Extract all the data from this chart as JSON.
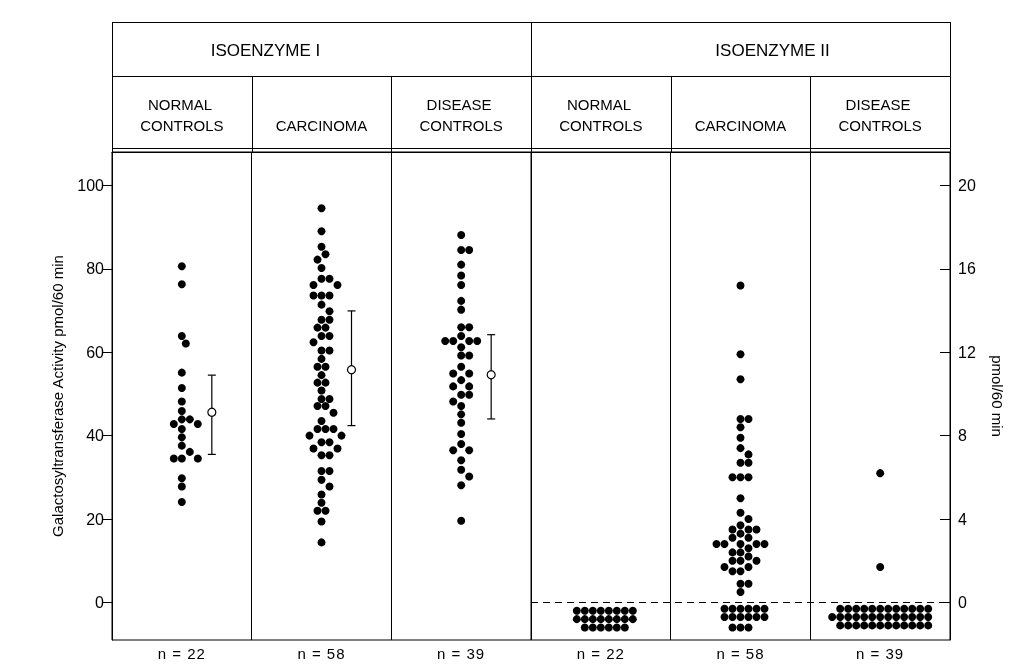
{
  "chart_data": [
    {
      "type": "scatter",
      "title": "ISOENZYME I",
      "categories": [
        "NORMAL CONTROLS",
        "CARCINOMA",
        "DISEASE CONTROLS"
      ],
      "ylabel": "Galactosyltransferase Activity pmol/60 min",
      "annotations": [
        "n = 22",
        "n = 58",
        "n = 39"
      ],
      "ylim": [
        -9,
        108
      ],
      "yticks": [
        0,
        20,
        40,
        60,
        80,
        100
      ],
      "grid": "x",
      "marker": "circle",
      "series": [
        {
          "axis": "y",
          "color": "#000000",
          "x": [
            "NORMAL CONTROLS",
            "NORMAL CONTROLS",
            "NORMAL CONTROLS",
            "NORMAL CONTROLS",
            "NORMAL CONTROLS",
            "NORMAL CONTROLS",
            "NORMAL CONTROLS",
            "NORMAL CONTROLS",
            "NORMAL CONTROLS",
            "NORMAL CONTROLS",
            "NORMAL CONTROLS",
            "NORMAL CONTROLS",
            "NORMAL CONTROLS",
            "NORMAL CONTROLS",
            "NORMAL CONTROLS",
            "NORMAL CONTROLS",
            "NORMAL CONTROLS",
            "NORMAL CONTROLS",
            "NORMAL CONTROLS",
            "NORMAL CONTROLS",
            "NORMAL CONTROLS",
            "NORMAL CONTROLS",
            "CARCINOMA",
            "CARCINOMA",
            "CARCINOMA",
            "CARCINOMA",
            "CARCINOMA",
            "CARCINOMA",
            "CARCINOMA",
            "CARCINOMA",
            "CARCINOMA",
            "CARCINOMA",
            "CARCINOMA",
            "CARCINOMA",
            "CARCINOMA",
            "CARCINOMA",
            "CARCINOMA",
            "CARCINOMA",
            "CARCINOMA",
            "CARCINOMA",
            "CARCINOMA",
            "CARCINOMA",
            "CARCINOMA",
            "CARCINOMA",
            "CARCINOMA",
            "CARCINOMA",
            "CARCINOMA",
            "CARCINOMA",
            "CARCINOMA",
            "CARCINOMA",
            "CARCINOMA",
            "CARCINOMA",
            "CARCINOMA",
            "CARCINOMA",
            "CARCINOMA",
            "CARCINOMA",
            "CARCINOMA",
            "CARCINOMA",
            "CARCINOMA",
            "CARCINOMA",
            "CARCINOMA",
            "CARCINOMA",
            "CARCINOMA",
            "CARCINOMA",
            "CARCINOMA",
            "CARCINOMA",
            "CARCINOMA",
            "CARCINOMA",
            "CARCINOMA",
            "CARCINOMA",
            "CARCINOMA",
            "CARCINOMA",
            "CARCINOMA",
            "CARCINOMA",
            "CARCINOMA",
            "CARCINOMA",
            "CARCINOMA",
            "CARCINOMA",
            "CARCINOMA",
            "CARCINOMA",
            "DISEASE CONTROLS",
            "DISEASE CONTROLS",
            "DISEASE CONTROLS",
            "DISEASE CONTROLS",
            "DISEASE CONTROLS",
            "DISEASE CONTROLS",
            "DISEASE CONTROLS",
            "DISEASE CONTROLS",
            "DISEASE CONTROLS",
            "DISEASE CONTROLS",
            "DISEASE CONTROLS",
            "DISEASE CONTROLS",
            "DISEASE CONTROLS",
            "DISEASE CONTROLS",
            "DISEASE CONTROLS",
            "DISEASE CONTROLS",
            "DISEASE CONTROLS",
            "DISEASE CONTROLS",
            "DISEASE CONTROLS",
            "DISEASE CONTROLS",
            "DISEASE CONTROLS",
            "DISEASE CONTROLS",
            "DISEASE CONTROLS",
            "DISEASE CONTROLS",
            "DISEASE CONTROLS",
            "DISEASE CONTROLS",
            "DISEASE CONTROLS",
            "DISEASE CONTROLS",
            "DISEASE CONTROLS",
            "DISEASE CONTROLS",
            "DISEASE CONTROLS",
            "DISEASE CONTROLS",
            "DISEASE CONTROLS",
            "DISEASE CONTROLS",
            "DISEASE CONTROLS",
            "DISEASE CONTROLS",
            "DISEASE CONTROLS",
            "DISEASE CONTROLS",
            "DISEASE CONTROLS"
          ],
          "values": [
            80.6,
            76.3,
            63.9,
            62.1,
            55.1,
            51.4,
            48.2,
            45.9,
            43.9,
            43.9,
            42.8,
            42.8,
            41.6,
            39.6,
            37.6,
            36.1,
            34.5,
            34.5,
            34.5,
            29.8,
            27.8,
            24.1,
            94.5,
            89.0,
            85.3,
            83.5,
            82.2,
            80.2,
            77.6,
            77.6,
            76.1,
            76.1,
            73.6,
            73.6,
            73.6,
            71.4,
            69.8,
            67.8,
            67.8,
            65.9,
            65.9,
            63.9,
            63.9,
            62.4,
            60.4,
            60.4,
            58.4,
            56.5,
            56.5,
            54.5,
            52.7,
            52.7,
            50.8,
            48.8,
            48.8,
            47.1,
            47.1,
            45.5,
            43.5,
            41.6,
            41.6,
            41.6,
            40.0,
            40.0,
            38.4,
            38.4,
            36.9,
            36.9,
            35.3,
            35.3,
            31.5,
            31.5,
            29.4,
            27.8,
            25.9,
            23.9,
            22.0,
            22.0,
            19.4,
            14.4,
            88.1,
            84.5,
            84.5,
            81.0,
            78.4,
            76.1,
            72.3,
            70.2,
            66.0,
            66.0,
            63.9,
            62.7,
            62.7,
            62.7,
            62.7,
            61.2,
            59.2,
            59.2,
            56.5,
            54.9,
            54.9,
            53.3,
            51.8,
            51.8,
            49.8,
            49.8,
            48.2,
            47.1,
            45.1,
            43.1,
            40.4,
            38.0,
            36.5,
            36.5,
            34.1,
            31.8,
            30.2,
            28.1,
            19.6
          ]
        },
        {
          "axis": "y",
          "color": "#ffffff",
          "x": [
            "NORMAL CONTROLS",
            "CARCINOMA",
            "DISEASE CONTROLS"
          ],
          "values": [
            45.6,
            55.8,
            54.6
          ],
          "errors": [
            [
              35.5,
              54.5
            ],
            [
              42.4,
              69.9
            ],
            [
              44.0,
              64.2
            ]
          ]
        }
      ]
    },
    {
      "type": "scatter",
      "title": "ISOENZYME II",
      "categories": [
        "NORMAL CONTROLS",
        "CARCINOMA",
        "DISEASE CONTROLS"
      ],
      "y2label": "pmol/60 min",
      "annotations": [
        "n = 22",
        "n = 58",
        "n = 39"
      ],
      "y2lim": [
        -1.8,
        21.6
      ],
      "y2ticks": [
        0,
        4,
        8,
        12,
        16,
        20
      ],
      "grid": "x",
      "marker": "circle",
      "ref_lines": [
        {
          "axis": "y2",
          "value": 0,
          "color": "#000000",
          "line_style": "dashed"
        }
      ],
      "series": [
        {
          "axis": "y2",
          "color": "#000000",
          "x": [
            "NORMAL CONTROLS",
            "NORMAL CONTROLS",
            "NORMAL CONTROLS",
            "NORMAL CONTROLS",
            "NORMAL CONTROLS",
            "NORMAL CONTROLS",
            "NORMAL CONTROLS",
            "NORMAL CONTROLS",
            "NORMAL CONTROLS",
            "NORMAL CONTROLS",
            "NORMAL CONTROLS",
            "NORMAL CONTROLS",
            "NORMAL CONTROLS",
            "NORMAL CONTROLS",
            "NORMAL CONTROLS",
            "NORMAL CONTROLS",
            "NORMAL CONTROLS",
            "NORMAL CONTROLS",
            "NORMAL CONTROLS",
            "NORMAL CONTROLS",
            "NORMAL CONTROLS",
            "NORMAL CONTROLS",
            "CARCINOMA",
            "CARCINOMA",
            "CARCINOMA",
            "CARCINOMA",
            "CARCINOMA",
            "CARCINOMA",
            "CARCINOMA",
            "CARCINOMA",
            "CARCINOMA",
            "CARCINOMA",
            "CARCINOMA",
            "CARCINOMA",
            "CARCINOMA",
            "CARCINOMA",
            "CARCINOMA",
            "CARCINOMA",
            "CARCINOMA",
            "CARCINOMA",
            "CARCINOMA",
            "CARCINOMA",
            "CARCINOMA",
            "CARCINOMA",
            "CARCINOMA",
            "CARCINOMA",
            "CARCINOMA",
            "CARCINOMA",
            "CARCINOMA",
            "CARCINOMA",
            "CARCINOMA",
            "CARCINOMA",
            "CARCINOMA",
            "CARCINOMA",
            "CARCINOMA",
            "CARCINOMA",
            "CARCINOMA",
            "CARCINOMA",
            "CARCINOMA",
            "CARCINOMA",
            "CARCINOMA",
            "CARCINOMA",
            "CARCINOMA",
            "CARCINOMA",
            "CARCINOMA",
            "CARCINOMA",
            "CARCINOMA",
            "CARCINOMA",
            "CARCINOMA",
            "CARCINOMA",
            "CARCINOMA",
            "CARCINOMA",
            "CARCINOMA",
            "CARCINOMA",
            "CARCINOMA",
            "CARCINOMA",
            "CARCINOMA",
            "CARCINOMA",
            "CARCINOMA",
            "CARCINOMA",
            "DISEASE CONTROLS",
            "DISEASE CONTROLS",
            "DISEASE CONTROLS",
            "DISEASE CONTROLS",
            "DISEASE CONTROLS",
            "DISEASE CONTROLS",
            "DISEASE CONTROLS",
            "DISEASE CONTROLS",
            "DISEASE CONTROLS",
            "DISEASE CONTROLS",
            "DISEASE CONTROLS",
            "DISEASE CONTROLS",
            "DISEASE CONTROLS",
            "DISEASE CONTROLS",
            "DISEASE CONTROLS",
            "DISEASE CONTROLS",
            "DISEASE CONTROLS",
            "DISEASE CONTROLS",
            "DISEASE CONTROLS",
            "DISEASE CONTROLS",
            "DISEASE CONTROLS",
            "DISEASE CONTROLS",
            "DISEASE CONTROLS",
            "DISEASE CONTROLS",
            "DISEASE CONTROLS",
            "DISEASE CONTROLS",
            "DISEASE CONTROLS",
            "DISEASE CONTROLS",
            "DISEASE CONTROLS",
            "DISEASE CONTROLS",
            "DISEASE CONTROLS",
            "DISEASE CONTROLS",
            "DISEASE CONTROLS",
            "DISEASE CONTROLS",
            "DISEASE CONTROLS",
            "DISEASE CONTROLS",
            "DISEASE CONTROLS",
            "DISEASE CONTROLS",
            "DISEASE CONTROLS"
          ],
          "values": [
            -0.4,
            -0.4,
            -0.4,
            -0.4,
            -0.4,
            -0.4,
            -0.4,
            -0.4,
            -0.8,
            -0.8,
            -0.8,
            -0.8,
            -0.8,
            -0.8,
            -0.8,
            -0.8,
            -1.2,
            -1.2,
            -1.2,
            -1.2,
            -1.2,
            -1.2,
            15.2,
            11.9,
            10.7,
            8.8,
            8.8,
            8.4,
            7.9,
            7.4,
            7.1,
            6.7,
            6.7,
            6.0,
            6.0,
            6.0,
            5.0,
            4.3,
            4.0,
            3.7,
            3.5,
            3.5,
            3.5,
            3.3,
            3.1,
            3.1,
            2.8,
            2.8,
            2.8,
            2.8,
            2.8,
            2.6,
            2.4,
            2.4,
            2.2,
            2.0,
            2.0,
            2.0,
            1.7,
            1.7,
            1.5,
            1.5,
            0.9,
            0.9,
            0.5,
            -0.3,
            -0.3,
            -0.3,
            -0.3,
            -0.3,
            -0.3,
            -0.7,
            -0.7,
            -0.7,
            -0.7,
            -0.7,
            -0.7,
            -1.2,
            -1.2,
            -1.2,
            6.2,
            1.7,
            -0.3,
            -0.3,
            -0.3,
            -0.3,
            -0.3,
            -0.3,
            -0.3,
            -0.3,
            -0.3,
            -0.3,
            -0.3,
            -0.3,
            -0.7,
            -0.7,
            -0.7,
            -0.7,
            -0.7,
            -0.7,
            -0.7,
            -0.7,
            -0.7,
            -0.7,
            -0.7,
            -0.7,
            -0.7,
            -1.1,
            -1.1,
            -1.1,
            -1.1,
            -1.1,
            -1.1,
            -1.1,
            -1.1,
            -1.1,
            -1.1,
            -1.1,
            -1.1
          ]
        }
      ]
    }
  ]
}
